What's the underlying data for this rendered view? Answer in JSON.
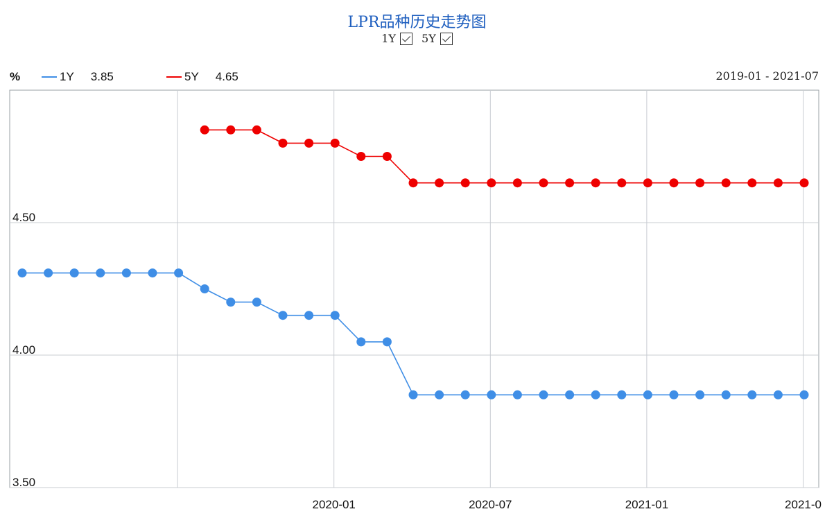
{
  "chart_data": {
    "type": "line",
    "title": "LPR品种历史走势图",
    "unit_label": "%",
    "date_range": "2019-01 - 2021-07",
    "toggles": [
      {
        "label": "1Y",
        "checked": true
      },
      {
        "label": "5Y",
        "checked": true
      }
    ],
    "ylim": [
      3.5,
      5.0
    ],
    "yticks": [
      "4.50",
      "4.00",
      "3.50"
    ],
    "xticks": [
      "2020-01",
      "2020-07",
      "2021-01",
      "2021-0"
    ],
    "grid": true,
    "x": [
      "2019-01",
      "2019-02",
      "2019-03",
      "2019-04",
      "2019-05",
      "2019-06",
      "2019-07",
      "2019-08",
      "2019-09",
      "2019-10",
      "2019-11",
      "2019-12",
      "2020-01",
      "2020-02",
      "2020-03",
      "2020-04",
      "2020-05",
      "2020-06",
      "2020-07",
      "2020-08",
      "2020-09",
      "2020-10",
      "2020-11",
      "2020-12",
      "2021-01",
      "2021-02",
      "2021-03",
      "2021-04",
      "2021-05",
      "2021-06",
      "2021-07"
    ],
    "series": [
      {
        "name": "1Y",
        "latest": "3.85",
        "color": "#3f8ee6",
        "values": [
          4.31,
          4.31,
          4.31,
          4.31,
          4.31,
          4.31,
          4.31,
          4.25,
          4.2,
          4.2,
          4.15,
          4.15,
          4.15,
          4.05,
          4.05,
          3.85,
          3.85,
          3.85,
          3.85,
          3.85,
          3.85,
          3.85,
          3.85,
          3.85,
          3.85,
          3.85,
          3.85,
          3.85,
          3.85,
          3.85,
          3.85
        ]
      },
      {
        "name": "5Y",
        "latest": "4.65",
        "color": "#ee0000",
        "values": [
          null,
          null,
          null,
          null,
          null,
          null,
          null,
          4.85,
          4.85,
          4.85,
          4.8,
          4.8,
          4.8,
          4.75,
          4.75,
          4.65,
          4.65,
          4.65,
          4.65,
          4.65,
          4.65,
          4.65,
          4.65,
          4.65,
          4.65,
          4.65,
          4.65,
          4.65,
          4.65,
          4.65,
          4.65
        ]
      }
    ]
  }
}
